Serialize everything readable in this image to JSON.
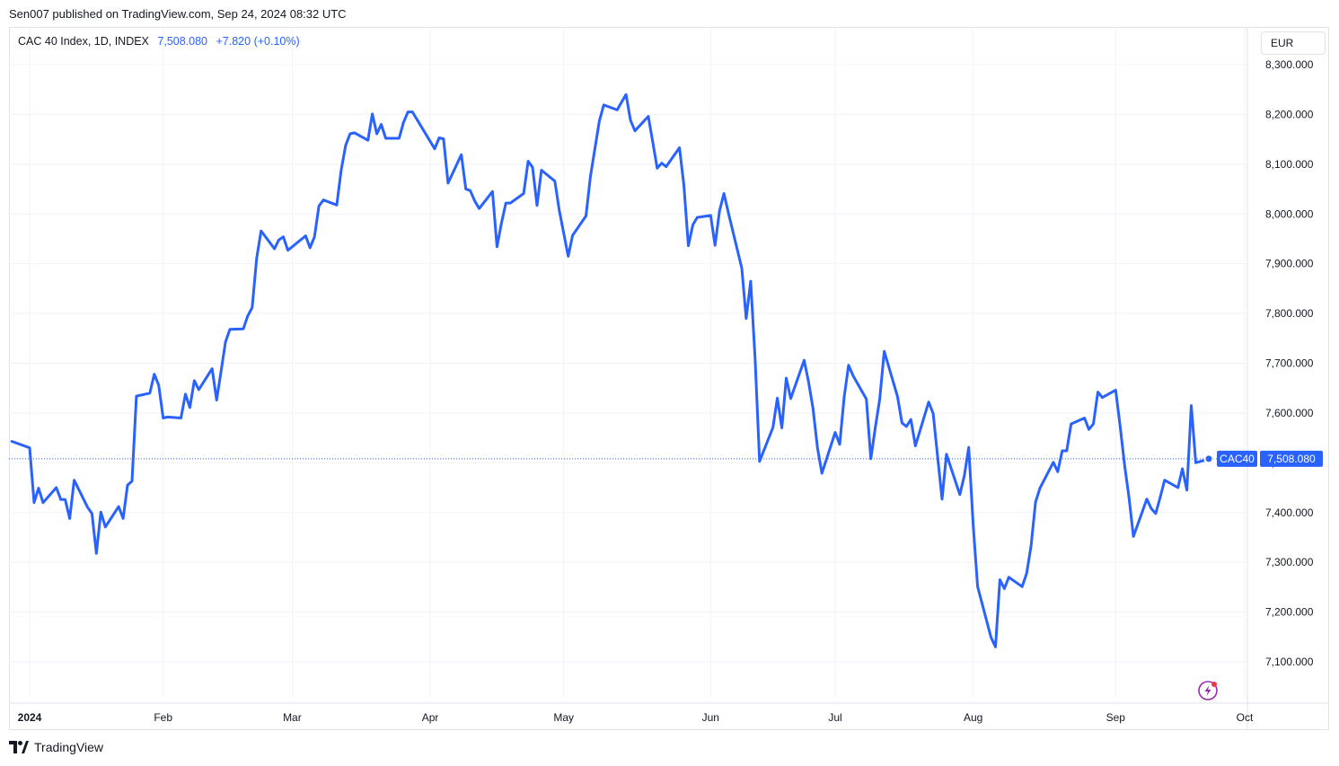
{
  "header": {
    "published_text": "Sen007 published on TradingView.com, Sep 24, 2024 08:32 UTC"
  },
  "legend": {
    "symbol_text": "CAC 40 Index, 1D, INDEX",
    "last_value": "7,508.080",
    "change": "+7.820",
    "change_pct": "(+0.10%)"
  },
  "currency_button": {
    "label": "EUR"
  },
  "price_badge": {
    "symbol": "CAC40",
    "value": "7,508.080"
  },
  "footer": {
    "brand": "TradingView"
  },
  "colors": {
    "line": "#2962ff",
    "grid": "#f0f3fa",
    "axis_text": "#131722",
    "accent_icon": "#9c27b0",
    "dot_red": "#f23645"
  },
  "chart_data": {
    "type": "line",
    "title": "",
    "xlabel": "",
    "ylabel": "",
    "y_axis_position": "right",
    "grid": true,
    "ylim": [
      7025,
      8335
    ],
    "y_ticks": [
      "7,100.000",
      "7,200.000",
      "7,300.000",
      "7,400.000",
      "7,500.000",
      "7,600.000",
      "7,700.000",
      "7,800.000",
      "7,900.000",
      "8,000.000",
      "8,100.000",
      "8,200.000",
      "8,300.000"
    ],
    "x_ticks": [
      {
        "date": "2024-01-02",
        "label": "2024"
      },
      {
        "date": "2024-02-01",
        "label": "Feb"
      },
      {
        "date": "2024-03-01",
        "label": "Mar"
      },
      {
        "date": "2024-04-01",
        "label": "Apr"
      },
      {
        "date": "2024-05-01",
        "label": "May"
      },
      {
        "date": "2024-06-03",
        "label": "Jun"
      },
      {
        "date": "2024-07-01",
        "label": "Jul"
      },
      {
        "date": "2024-08-01",
        "label": "Aug"
      },
      {
        "date": "2024-09-02",
        "label": "Sep"
      },
      {
        "date": "2024-10-01",
        "label": "Oct"
      }
    ],
    "x_range": [
      "2023-12-29",
      "2024-10-05"
    ],
    "series": [
      {
        "name": "CAC40",
        "points": [
          [
            "2023-12-29",
            7543
          ],
          [
            "2024-01-02",
            7530
          ],
          [
            "2024-01-03",
            7420
          ],
          [
            "2024-01-04",
            7449
          ],
          [
            "2024-01-05",
            7420
          ],
          [
            "2024-01-08",
            7450
          ],
          [
            "2024-01-09",
            7426
          ],
          [
            "2024-01-10",
            7426
          ],
          [
            "2024-01-11",
            7388
          ],
          [
            "2024-01-12",
            7465
          ],
          [
            "2024-01-15",
            7411
          ],
          [
            "2024-01-16",
            7398
          ],
          [
            "2024-01-17",
            7318
          ],
          [
            "2024-01-18",
            7401
          ],
          [
            "2024-01-19",
            7371
          ],
          [
            "2024-01-22",
            7412
          ],
          [
            "2024-01-23",
            7388
          ],
          [
            "2024-01-24",
            7455
          ],
          [
            "2024-01-25",
            7463
          ],
          [
            "2024-01-26",
            7634
          ],
          [
            "2024-01-29",
            7640
          ],
          [
            "2024-01-30",
            7678
          ],
          [
            "2024-01-31",
            7656
          ],
          [
            "2024-02-01",
            7590
          ],
          [
            "2024-02-02",
            7592
          ],
          [
            "2024-02-05",
            7590
          ],
          [
            "2024-02-06",
            7638
          ],
          [
            "2024-02-07",
            7611
          ],
          [
            "2024-02-08",
            7665
          ],
          [
            "2024-02-09",
            7647
          ],
          [
            "2024-02-12",
            7689
          ],
          [
            "2024-02-13",
            7626
          ],
          [
            "2024-02-14",
            7683
          ],
          [
            "2024-02-15",
            7743
          ],
          [
            "2024-02-16",
            7768
          ],
          [
            "2024-02-19",
            7769
          ],
          [
            "2024-02-20",
            7795
          ],
          [
            "2024-02-21",
            7812
          ],
          [
            "2024-02-22",
            7911
          ],
          [
            "2024-02-23",
            7966
          ],
          [
            "2024-02-26",
            7930
          ],
          [
            "2024-02-27",
            7948
          ],
          [
            "2024-02-28",
            7954
          ],
          [
            "2024-02-29",
            7927
          ],
          [
            "2024-03-01",
            7934
          ],
          [
            "2024-03-04",
            7956
          ],
          [
            "2024-03-05",
            7932
          ],
          [
            "2024-03-06",
            7954
          ],
          [
            "2024-03-07",
            8016
          ],
          [
            "2024-03-08",
            8028
          ],
          [
            "2024-03-11",
            8018
          ],
          [
            "2024-03-12",
            8088
          ],
          [
            "2024-03-13",
            8138
          ],
          [
            "2024-03-14",
            8161
          ],
          [
            "2024-03-15",
            8163
          ],
          [
            "2024-03-18",
            8148
          ],
          [
            "2024-03-19",
            8201
          ],
          [
            "2024-03-20",
            8161
          ],
          [
            "2024-03-21",
            8180
          ],
          [
            "2024-03-22",
            8152
          ],
          [
            "2024-03-25",
            8152
          ],
          [
            "2024-03-26",
            8184
          ],
          [
            "2024-03-27",
            8205
          ],
          [
            "2024-03-28",
            8205
          ],
          [
            "2024-04-02",
            8131
          ],
          [
            "2024-04-03",
            8153
          ],
          [
            "2024-04-04",
            8151
          ],
          [
            "2024-04-05",
            8062
          ],
          [
            "2024-04-08",
            8119
          ],
          [
            "2024-04-09",
            8050
          ],
          [
            "2024-04-10",
            8047
          ],
          [
            "2024-04-11",
            8026
          ],
          [
            "2024-04-12",
            8011
          ],
          [
            "2024-04-15",
            8045
          ],
          [
            "2024-04-16",
            7934
          ],
          [
            "2024-04-17",
            7981
          ],
          [
            "2024-04-18",
            8022
          ],
          [
            "2024-04-19",
            8022
          ],
          [
            "2024-04-22",
            8041
          ],
          [
            "2024-04-23",
            8106
          ],
          [
            "2024-04-24",
            8094
          ],
          [
            "2024-04-25",
            8017
          ],
          [
            "2024-04-26",
            8088
          ],
          [
            "2024-04-29",
            8066
          ],
          [
            "2024-04-30",
            8007
          ],
          [
            "2024-05-02",
            7915
          ],
          [
            "2024-05-03",
            7957
          ],
          [
            "2024-05-06",
            7996
          ],
          [
            "2024-05-07",
            8076
          ],
          [
            "2024-05-08",
            8131
          ],
          [
            "2024-05-09",
            8187
          ],
          [
            "2024-05-10",
            8219
          ],
          [
            "2024-05-13",
            8209
          ],
          [
            "2024-05-14",
            8225
          ],
          [
            "2024-05-15",
            8240
          ],
          [
            "2024-05-16",
            8188
          ],
          [
            "2024-05-17",
            8167
          ],
          [
            "2024-05-20",
            8196
          ],
          [
            "2024-05-21",
            8145
          ],
          [
            "2024-05-22",
            8092
          ],
          [
            "2024-05-23",
            8102
          ],
          [
            "2024-05-24",
            8095
          ],
          [
            "2024-05-27",
            8133
          ],
          [
            "2024-05-28",
            8058
          ],
          [
            "2024-05-29",
            7936
          ],
          [
            "2024-05-30",
            7978
          ],
          [
            "2024-05-31",
            7993
          ],
          [
            "2024-06-03",
            7997
          ],
          [
            "2024-06-04",
            7937
          ],
          [
            "2024-06-05",
            8006
          ],
          [
            "2024-06-06",
            8041
          ],
          [
            "2024-06-07",
            8002
          ],
          [
            "2024-06-10",
            7891
          ],
          [
            "2024-06-11",
            7790
          ],
          [
            "2024-06-12",
            7865
          ],
          [
            "2024-06-13",
            7710
          ],
          [
            "2024-06-14",
            7503
          ],
          [
            "2024-06-17",
            7571
          ],
          [
            "2024-06-18",
            7630
          ],
          [
            "2024-06-19",
            7570
          ],
          [
            "2024-06-20",
            7670
          ],
          [
            "2024-06-21",
            7629
          ],
          [
            "2024-06-24",
            7706
          ],
          [
            "2024-06-25",
            7663
          ],
          [
            "2024-06-26",
            7609
          ],
          [
            "2024-06-27",
            7531
          ],
          [
            "2024-06-28",
            7479
          ],
          [
            "2024-07-01",
            7561
          ],
          [
            "2024-07-02",
            7537
          ],
          [
            "2024-07-03",
            7632
          ],
          [
            "2024-07-04",
            7696
          ],
          [
            "2024-07-05",
            7675
          ],
          [
            "2024-07-08",
            7628
          ],
          [
            "2024-07-09",
            7508
          ],
          [
            "2024-07-10",
            7570
          ],
          [
            "2024-07-11",
            7628
          ],
          [
            "2024-07-12",
            7724
          ],
          [
            "2024-07-15",
            7633
          ],
          [
            "2024-07-16",
            7580
          ],
          [
            "2024-07-17",
            7573
          ],
          [
            "2024-07-18",
            7587
          ],
          [
            "2024-07-19",
            7534
          ],
          [
            "2024-07-22",
            7622
          ],
          [
            "2024-07-23",
            7599
          ],
          [
            "2024-07-24",
            7513
          ],
          [
            "2024-07-25",
            7427
          ],
          [
            "2024-07-26",
            7517
          ],
          [
            "2024-07-29",
            7436
          ],
          [
            "2024-07-30",
            7474
          ],
          [
            "2024-07-31",
            7531
          ],
          [
            "2024-08-01",
            7374
          ],
          [
            "2024-08-02",
            7251
          ],
          [
            "2024-08-05",
            7149
          ],
          [
            "2024-08-06",
            7130
          ],
          [
            "2024-08-07",
            7265
          ],
          [
            "2024-08-08",
            7247
          ],
          [
            "2024-08-09",
            7270
          ],
          [
            "2024-08-12",
            7251
          ],
          [
            "2024-08-13",
            7278
          ],
          [
            "2024-08-14",
            7333
          ],
          [
            "2024-08-15",
            7421
          ],
          [
            "2024-08-16",
            7449
          ],
          [
            "2024-08-19",
            7501
          ],
          [
            "2024-08-20",
            7482
          ],
          [
            "2024-08-21",
            7524
          ],
          [
            "2024-08-22",
            7524
          ],
          [
            "2024-08-23",
            7578
          ],
          [
            "2024-08-26",
            7590
          ],
          [
            "2024-08-27",
            7567
          ],
          [
            "2024-08-28",
            7578
          ],
          [
            "2024-08-29",
            7642
          ],
          [
            "2024-08-30",
            7631
          ],
          [
            "2024-09-02",
            7646
          ],
          [
            "2024-09-03",
            7575
          ],
          [
            "2024-09-04",
            7496
          ],
          [
            "2024-09-05",
            7431
          ],
          [
            "2024-09-06",
            7352
          ],
          [
            "2024-09-09",
            7427
          ],
          [
            "2024-09-10",
            7408
          ],
          [
            "2024-09-11",
            7398
          ],
          [
            "2024-09-12",
            7430
          ],
          [
            "2024-09-13",
            7465
          ],
          [
            "2024-09-16",
            7450
          ],
          [
            "2024-09-17",
            7488
          ],
          [
            "2024-09-18",
            7445
          ],
          [
            "2024-09-19",
            7615
          ],
          [
            "2024-09-20",
            7500
          ],
          [
            "2024-09-23",
            7508.08
          ]
        ]
      }
    ]
  }
}
